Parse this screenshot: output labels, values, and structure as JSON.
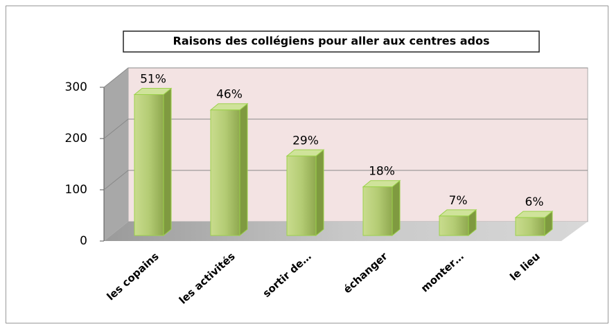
{
  "chart_data": {
    "type": "bar3d",
    "title": "Raisons des collégiens pour aller aux centres ados",
    "categories": [
      "les copains",
      "les activités",
      "sortir de…",
      "échanger",
      "monter…",
      "le lieu"
    ],
    "values": [
      275,
      245,
      155,
      95,
      38,
      35
    ],
    "annotations": [
      "51%",
      "46%",
      "29%",
      "18%",
      "7%",
      "6%"
    ],
    "color": "#9bbb59",
    "ylim": [
      0,
      300
    ],
    "yticks": [
      0,
      100,
      200,
      300
    ],
    "grid": true
  }
}
